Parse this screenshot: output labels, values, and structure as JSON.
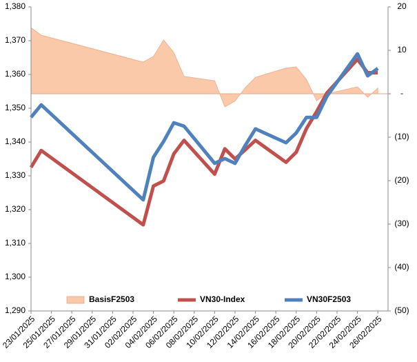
{
  "chart_data": {
    "type": "line",
    "x": [
      "23/01/2025",
      "24/01/2025",
      "03/02/2025",
      "04/02/2025",
      "05/02/2025",
      "06/02/2025",
      "07/02/2025",
      "10/02/2025",
      "11/02/2025",
      "12/02/2025",
      "13/02/2025",
      "14/02/2025",
      "17/02/2025",
      "18/02/2025",
      "19/02/2025",
      "20/02/2025",
      "21/02/2025",
      "24/02/2025",
      "25/02/2025",
      "26/02/2025"
    ],
    "xlim": [
      "23/01/2025",
      "27/02/2025"
    ],
    "xticks": [
      "23/01/2025",
      "25/01/2025",
      "27/01/2025",
      "29/01/2025",
      "31/01/2025",
      "02/02/2025",
      "04/02/2025",
      "06/02/2025",
      "08/02/2025",
      "10/02/2025",
      "12/02/2025",
      "14/02/2025",
      "16/02/2025",
      "18/02/2025",
      "20/02/2025",
      "22/02/2025",
      "24/02/2025",
      "26/02/2025"
    ],
    "ylim": [
      1290,
      1380
    ],
    "yticks": [
      {
        "value": 1290,
        "label": "1,290"
      },
      {
        "value": 1300,
        "label": "1,300"
      },
      {
        "value": 1310,
        "label": "1,310"
      },
      {
        "value": 1320,
        "label": "1,320"
      },
      {
        "value": 1330,
        "label": "1,330"
      },
      {
        "value": 1340,
        "label": "1,340"
      },
      {
        "value": 1350,
        "label": "1,350"
      },
      {
        "value": 1360,
        "label": "1,360"
      },
      {
        "value": 1370,
        "label": "1,370"
      },
      {
        "value": 1380,
        "label": "1,380"
      }
    ],
    "y2lim": [
      -50,
      20
    ],
    "y2ticks": [
      {
        "value": -50,
        "label": "(50)"
      },
      {
        "value": -40,
        "label": "(40)"
      },
      {
        "value": -30,
        "label": "(30)"
      },
      {
        "value": -20,
        "label": "(20)"
      },
      {
        "value": -10,
        "label": "(10)"
      },
      {
        "value": 0,
        "label": "-"
      },
      10,
      20
    ],
    "series": [
      {
        "name": "BasisF2503",
        "type": "area",
        "axis": "y2",
        "color": "#f9c9a9",
        "values": [
          15.2,
          13.5,
          7.3,
          8.6,
          12.4,
          9.5,
          4.0,
          3.0,
          -3.0,
          -1.7,
          1.4,
          3.8,
          5.9,
          6.2,
          3.3,
          -1.6,
          0.0,
          1.6,
          -0.8,
          1.3
        ]
      },
      {
        "name": "VN30-Index",
        "type": "line",
        "color": "#c0504d",
        "values": [
          1332.5,
          1337.5,
          1315.5,
          1327.0,
          1328.5,
          1336.5,
          1340.5,
          1330.5,
          1338.0,
          1335.0,
          1337.7,
          1340.5,
          1334.0,
          1337.0,
          1344.0,
          1349.0,
          1354.5,
          1364.5,
          1360.5,
          1360.5
        ]
      },
      {
        "name": "VN30F2503",
        "type": "line",
        "color": "#4f81bd",
        "values": [
          1347.3,
          1351.0,
          1322.9,
          1335.5,
          1340.2,
          1345.7,
          1344.7,
          1333.7,
          1335.1,
          1333.7,
          1339.0,
          1343.9,
          1339.8,
          1342.7,
          1347.3,
          1347.3,
          1353.5,
          1366.1,
          1359.6,
          1361.8
        ]
      }
    ],
    "legend": "bottom"
  }
}
